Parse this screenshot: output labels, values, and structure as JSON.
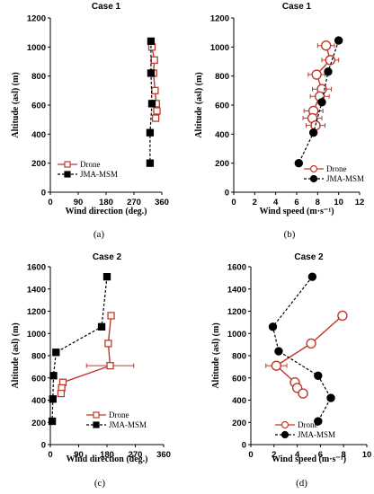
{
  "chart_data": [
    {
      "type": "line",
      "title": "Case 1",
      "caption": "(a)",
      "xlabel": "Wind direction (deg.)",
      "ylabel": "Altitude (asl) (m)",
      "xlim": [
        0,
        360
      ],
      "ylim": [
        0,
        1200
      ],
      "xticks": [
        0,
        90,
        180,
        270,
        360
      ],
      "yticks": [
        0,
        200,
        400,
        600,
        800,
        1000,
        1200
      ],
      "legend_placement": "lower-left",
      "series": [
        {
          "name": "Drone",
          "color": "#c0392b",
          "marker": "square-open",
          "line": "solid",
          "points": [
            {
              "x": 328,
              "y": 1000,
              "xerr": 6
            },
            {
              "x": 336,
              "y": 910,
              "xerr": 6
            },
            {
              "x": 333,
              "y": 820,
              "xerr": 6
            },
            {
              "x": 338,
              "y": 700,
              "xerr": 8
            },
            {
              "x": 342,
              "y": 610,
              "xerr": 10
            },
            {
              "x": 344,
              "y": 560,
              "xerr": 10
            },
            {
              "x": 340,
              "y": 510,
              "xerr": 10
            }
          ]
        },
        {
          "name": "JMA-MSM",
          "color": "#000000",
          "marker": "square-filled",
          "line": "dashed",
          "points": [
            {
              "x": 325,
              "y": 1040
            },
            {
              "x": 325,
              "y": 820
            },
            {
              "x": 328,
              "y": 610
            },
            {
              "x": 322,
              "y": 410
            },
            {
              "x": 322,
              "y": 200
            }
          ]
        }
      ]
    },
    {
      "type": "line",
      "title": "Case 1",
      "caption": "(b)",
      "xlabel": "Wind speed (m·s⁻¹)",
      "ylabel": "Altitude (asl) (m)",
      "xlim": [
        0,
        12
      ],
      "ylim": [
        0,
        1200
      ],
      "xticks": [
        0,
        2,
        4,
        6,
        8,
        10,
        12
      ],
      "yticks": [
        0,
        200,
        400,
        600,
        800,
        1000,
        1200
      ],
      "legend_placement": "lower-right",
      "series": [
        {
          "name": "Drone",
          "color": "#c0392b",
          "marker": "circle-open",
          "line": "solid",
          "points": [
            {
              "x": 8.8,
              "y": 1010,
              "xerr": 0.8
            },
            {
              "x": 9.2,
              "y": 910,
              "xerr": 0.8
            },
            {
              "x": 7.9,
              "y": 810,
              "xerr": 0.8
            },
            {
              "x": 8.4,
              "y": 710,
              "xerr": 0.9
            },
            {
              "x": 8.2,
              "y": 660,
              "xerr": 0.9
            },
            {
              "x": 7.6,
              "y": 560,
              "xerr": 0.9
            },
            {
              "x": 7.5,
              "y": 510,
              "xerr": 0.9
            },
            {
              "x": 7.8,
              "y": 460,
              "xerr": 0.9
            }
          ]
        },
        {
          "name": "JMA-MSM",
          "color": "#000000",
          "marker": "circle-filled",
          "line": "dashed",
          "points": [
            {
              "x": 10.0,
              "y": 1045
            },
            {
              "x": 9.0,
              "y": 830
            },
            {
              "x": 8.4,
              "y": 620
            },
            {
              "x": 7.6,
              "y": 410
            },
            {
              "x": 6.2,
              "y": 200
            }
          ]
        }
      ]
    },
    {
      "type": "line",
      "title": "Case 2",
      "caption": "(c)",
      "xlabel": "Wind direction (deg.)",
      "ylabel": "Altitude (asl) (m)",
      "xlim": [
        0,
        360
      ],
      "ylim": [
        0,
        1600
      ],
      "xticks": [
        0,
        90,
        180,
        270,
        360
      ],
      "yticks": [
        0,
        200,
        400,
        600,
        800,
        1000,
        1200,
        1400,
        1600
      ],
      "legend_placement": "lower-right",
      "series": [
        {
          "name": "Drone",
          "color": "#c0392b",
          "marker": "square-open",
          "line": "solid",
          "points": [
            {
              "x": 193,
              "y": 1160,
              "xerr": 0
            },
            {
              "x": 184,
              "y": 910,
              "xerr": 8
            },
            {
              "x": 190,
              "y": 710,
              "xerr": 75
            },
            {
              "x": 40,
              "y": 560,
              "xerr": 6
            },
            {
              "x": 36,
              "y": 510,
              "xerr": 6
            },
            {
              "x": 34,
              "y": 460,
              "xerr": 6
            }
          ]
        },
        {
          "name": "JMA-MSM",
          "color": "#000000",
          "marker": "square-filled",
          "line": "dashed",
          "points": [
            {
              "x": 180,
              "y": 1510
            },
            {
              "x": 163,
              "y": 1060
            },
            {
              "x": 18,
              "y": 830
            },
            {
              "x": 10,
              "y": 620
            },
            {
              "x": 8,
              "y": 410
            },
            {
              "x": 6,
              "y": 210
            }
          ]
        }
      ]
    },
    {
      "type": "line",
      "title": "Case 2",
      "caption": "(d)",
      "xlabel": "Wind speed (m·s⁻¹)",
      "ylabel": "Altitude (asl) (m)",
      "xlim": [
        0,
        10
      ],
      "ylim": [
        0,
        1600
      ],
      "xticks": [
        0,
        2,
        4,
        6,
        8,
        10
      ],
      "yticks": [
        0,
        200,
        400,
        600,
        800,
        1000,
        1200,
        1400,
        1600
      ],
      "legend_placement": "lower-center",
      "series": [
        {
          "name": "Drone",
          "color": "#c0392b",
          "marker": "circle-open",
          "line": "solid",
          "points": [
            {
              "x": 7.9,
              "y": 1160,
              "xerr": 0
            },
            {
              "x": 5.2,
              "y": 910,
              "xerr": 0
            },
            {
              "x": 2.2,
              "y": 710,
              "xerr": 0.9
            },
            {
              "x": 3.8,
              "y": 560,
              "xerr": 0.3
            },
            {
              "x": 4.0,
              "y": 510,
              "xerr": 0.3
            },
            {
              "x": 4.5,
              "y": 460,
              "xerr": 0.3
            }
          ]
        },
        {
          "name": "JMA-MSM",
          "color": "#000000",
          "marker": "circle-filled",
          "line": "dashed",
          "points": [
            {
              "x": 5.3,
              "y": 1510
            },
            {
              "x": 1.9,
              "y": 1060
            },
            {
              "x": 2.4,
              "y": 840
            },
            {
              "x": 5.8,
              "y": 620
            },
            {
              "x": 6.9,
              "y": 420
            },
            {
              "x": 5.8,
              "y": 210
            }
          ]
        }
      ]
    }
  ]
}
